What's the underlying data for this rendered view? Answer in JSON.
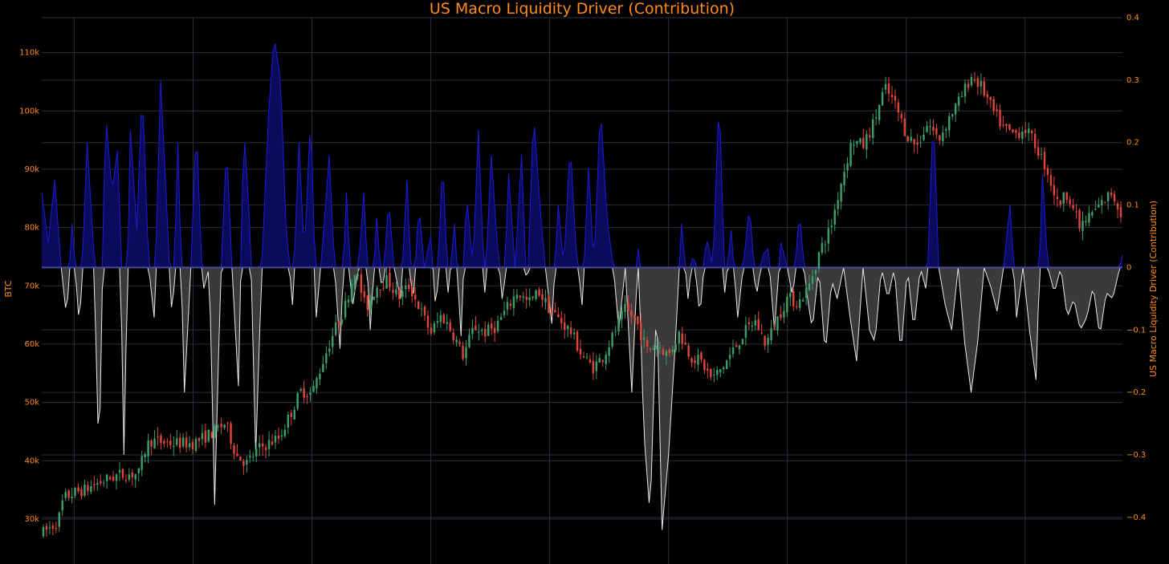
{
  "chart_data": {
    "type": "candlestick+area",
    "title": "US Macro Liquidity Driver (Contribution)",
    "y_left": {
      "label": "BTC",
      "range": [
        26000,
        116000
      ],
      "ticks": [
        30000,
        40000,
        50000,
        60000,
        70000,
        80000,
        90000,
        100000,
        110000
      ],
      "tick_labels": [
        "30k",
        "40k",
        "50k",
        "60k",
        "70k",
        "80k",
        "90k",
        "100k",
        "110k"
      ]
    },
    "y_right": {
      "label": "US Macro Liquidity Driver (Contribution)",
      "range": [
        -0.44,
        0.4
      ],
      "ticks": [
        -0.4,
        -0.3,
        -0.2,
        -0.1,
        0,
        0.1,
        0.2,
        0.3,
        0.4
      ],
      "tick_labels": [
        "−0.4",
        "−0.3",
        "−0.2",
        "−0.1",
        "0",
        "0.1",
        "0.2",
        "0.3",
        "0.4"
      ]
    },
    "x": {
      "range": [
        0,
        100
      ],
      "grid_positions": [
        3,
        14,
        25,
        36,
        47,
        58,
        69,
        80,
        91
      ],
      "tick_labels": []
    },
    "grid": true,
    "colors": {
      "background": "#000000",
      "grid": "#2b2f3e",
      "up": "#3d9e6a",
      "down": "#e0453a",
      "positive_fill": "#0b0b5e",
      "positive_line": "#1c1cd6",
      "negative_fill": "#3a3a3a",
      "negative_line": "#e8e8e8",
      "text": "#ff8c1a"
    },
    "btc_anchors": [
      [
        0,
        27500
      ],
      [
        1.5,
        29500
      ],
      [
        2,
        33500
      ],
      [
        3,
        34500
      ],
      [
        4,
        35000
      ],
      [
        5,
        36000
      ],
      [
        7,
        37500
      ],
      [
        9,
        37800
      ],
      [
        9.5,
        41500
      ],
      [
        10,
        43500
      ],
      [
        12,
        43000
      ],
      [
        14,
        43000
      ],
      [
        16,
        45000
      ],
      [
        17,
        46500
      ],
      [
        18,
        41000
      ],
      [
        19,
        39500
      ],
      [
        20,
        42000
      ],
      [
        22,
        44000
      ],
      [
        23,
        48000
      ],
      [
        24,
        52000
      ],
      [
        25,
        51500
      ],
      [
        26,
        57000
      ],
      [
        27,
        62000
      ],
      [
        28,
        66000
      ],
      [
        29,
        73000
      ],
      [
        30,
        66000
      ],
      [
        31,
        70000
      ],
      [
        32,
        71000
      ],
      [
        33,
        68000
      ],
      [
        34,
        70000
      ],
      [
        35,
        66000
      ],
      [
        36,
        62000
      ],
      [
        37,
        65000
      ],
      [
        38,
        62000
      ],
      [
        39,
        58000
      ],
      [
        40,
        63000
      ],
      [
        41,
        62000
      ],
      [
        42,
        63000
      ],
      [
        43,
        66000
      ],
      [
        44,
        69000
      ],
      [
        45,
        67000
      ],
      [
        46,
        69000
      ],
      [
        47,
        66000
      ],
      [
        48,
        64000
      ],
      [
        49,
        62000
      ],
      [
        50,
        58000
      ],
      [
        51,
        56000
      ],
      [
        52,
        58000
      ],
      [
        53,
        62000
      ],
      [
        54,
        66000
      ],
      [
        55,
        64000
      ],
      [
        56,
        59000
      ],
      [
        57,
        60000
      ],
      [
        58,
        58000
      ],
      [
        59,
        62000
      ],
      [
        60,
        58000
      ],
      [
        61,
        57000
      ],
      [
        62,
        54000
      ],
      [
        63,
        56000
      ],
      [
        64,
        59000
      ],
      [
        65,
        62000
      ],
      [
        66,
        64000
      ],
      [
        67,
        60000
      ],
      [
        68,
        64000
      ],
      [
        69,
        68000
      ],
      [
        70,
        67000
      ],
      [
        71,
        70000
      ],
      [
        72,
        76000
      ],
      [
        73,
        80000
      ],
      [
        74,
        88000
      ],
      [
        75,
        95000
      ],
      [
        76,
        94000
      ],
      [
        77,
        98000
      ],
      [
        78,
        104000
      ],
      [
        79,
        101000
      ],
      [
        80,
        96000
      ],
      [
        81,
        94000
      ],
      [
        82,
        98000
      ],
      [
        83,
        95000
      ],
      [
        84,
        99000
      ],
      [
        85,
        102000
      ],
      [
        86,
        106000
      ],
      [
        87,
        104000
      ],
      [
        88,
        100000
      ],
      [
        89,
        97000
      ],
      [
        90,
        96000
      ],
      [
        91,
        97000
      ],
      [
        92,
        94000
      ],
      [
        93,
        90000
      ],
      [
        94,
        84000
      ],
      [
        95,
        86000
      ],
      [
        96,
        80000
      ],
      [
        97,
        82000
      ],
      [
        98,
        84000
      ],
      [
        99,
        86000
      ],
      [
        100,
        82000
      ]
    ],
    "liquidity_anchors": [
      [
        0,
        0.12
      ],
      [
        0.6,
        0.04
      ],
      [
        1.2,
        0.14
      ],
      [
        1.8,
        0.0
      ],
      [
        2.3,
        -0.08
      ],
      [
        2.8,
        0.07
      ],
      [
        3.5,
        -0.1
      ],
      [
        4.2,
        0.2
      ],
      [
        4.8,
        0.03
      ],
      [
        5.3,
        -0.32
      ],
      [
        5.9,
        0.25
      ],
      [
        6.5,
        0.12
      ],
      [
        7.1,
        0.2
      ],
      [
        7.6,
        -0.3
      ],
      [
        8.2,
        0.22
      ],
      [
        8.8,
        0.06
      ],
      [
        9.3,
        0.29
      ],
      [
        9.9,
        0.0
      ],
      [
        10.4,
        -0.08
      ],
      [
        11.0,
        0.3
      ],
      [
        11.5,
        0.12
      ],
      [
        12.1,
        -0.1
      ],
      [
        12.6,
        0.2
      ],
      [
        13.2,
        -0.2
      ],
      [
        13.8,
        0.0
      ],
      [
        14.3,
        0.23
      ],
      [
        14.9,
        -0.04
      ],
      [
        15.5,
        0.0
      ],
      [
        16.0,
        -0.38
      ],
      [
        16.5,
        -0.05
      ],
      [
        17.1,
        0.2
      ],
      [
        17.6,
        0.0
      ],
      [
        18.2,
        -0.19
      ],
      [
        18.7,
        0.23
      ],
      [
        19.3,
        0.05
      ],
      [
        19.8,
        -0.3
      ],
      [
        20.4,
        0.02
      ],
      [
        21.0,
        0.25
      ],
      [
        21.5,
        0.37
      ],
      [
        22.1,
        0.3
      ],
      [
        22.6,
        0.07
      ],
      [
        23.2,
        -0.06
      ],
      [
        23.8,
        0.2
      ],
      [
        24.3,
        0.02
      ],
      [
        24.9,
        0.25
      ],
      [
        25.4,
        -0.08
      ],
      [
        26.0,
        0.04
      ],
      [
        26.6,
        0.18
      ],
      [
        27.1,
        0.0
      ],
      [
        27.6,
        -0.13
      ],
      [
        28.2,
        0.12
      ],
      [
        28.7,
        -0.07
      ],
      [
        29.3,
        0.0
      ],
      [
        29.8,
        0.12
      ],
      [
        30.4,
        -0.1
      ],
      [
        31.0,
        0.08
      ],
      [
        31.5,
        -0.05
      ],
      [
        32.1,
        0.11
      ],
      [
        32.6,
        0.0
      ],
      [
        33.2,
        -0.05
      ],
      [
        33.8,
        0.14
      ],
      [
        34.3,
        -0.07
      ],
      [
        34.9,
        0.1
      ],
      [
        35.4,
        0.0
      ],
      [
        36.0,
        0.05
      ],
      [
        36.5,
        -0.08
      ],
      [
        37.1,
        0.18
      ],
      [
        37.6,
        -0.04
      ],
      [
        38.2,
        0.07
      ],
      [
        38.8,
        -0.11
      ],
      [
        39.3,
        0.12
      ],
      [
        39.9,
        0.0
      ],
      [
        40.4,
        0.22
      ],
      [
        41.0,
        -0.04
      ],
      [
        41.6,
        0.18
      ],
      [
        42.1,
        0.05
      ],
      [
        42.7,
        -0.07
      ],
      [
        43.2,
        0.15
      ],
      [
        43.8,
        0.0
      ],
      [
        44.4,
        0.18
      ],
      [
        44.9,
        -0.06
      ],
      [
        45.5,
        0.25
      ],
      [
        46.1,
        0.1
      ],
      [
        46.6,
        0.0
      ],
      [
        47.2,
        -0.09
      ],
      [
        47.8,
        0.1
      ],
      [
        48.3,
        0.0
      ],
      [
        48.9,
        0.2
      ],
      [
        49.4,
        0.04
      ],
      [
        50.0,
        -0.06
      ],
      [
        50.6,
        0.16
      ],
      [
        51.1,
        0.0
      ],
      [
        51.7,
        0.26
      ],
      [
        52.3,
        0.08
      ],
      [
        52.9,
        0.0
      ],
      [
        53.4,
        -0.1
      ],
      [
        54.0,
        0.0
      ],
      [
        54.6,
        -0.2
      ],
      [
        55.2,
        0.03
      ],
      [
        55.7,
        -0.26
      ],
      [
        56.3,
        -0.4
      ],
      [
        56.9,
        -0.04
      ],
      [
        57.4,
        -0.42
      ],
      [
        58.0,
        -0.3
      ],
      [
        58.6,
        -0.13
      ],
      [
        59.2,
        0.07
      ],
      [
        59.8,
        -0.05
      ],
      [
        60.3,
        0.03
      ],
      [
        60.9,
        -0.08
      ],
      [
        61.5,
        0.05
      ],
      [
        62.1,
        0.0
      ],
      [
        62.7,
        0.28
      ],
      [
        63.2,
        -0.04
      ],
      [
        63.8,
        0.06
      ],
      [
        64.4,
        -0.08
      ],
      [
        64.9,
        0.0
      ],
      [
        65.5,
        0.1
      ],
      [
        66.1,
        -0.05
      ],
      [
        66.7,
        0.02
      ],
      [
        67.2,
        0.03
      ],
      [
        67.8,
        -0.1
      ],
      [
        68.4,
        0.04
      ],
      [
        69.0,
        0.0
      ],
      [
        69.5,
        -0.05
      ],
      [
        70.1,
        0.09
      ],
      [
        70.7,
        -0.03
      ],
      [
        71.3,
        -0.1
      ],
      [
        71.9,
        0.0
      ],
      [
        72.5,
        -0.14
      ],
      [
        73.1,
        -0.02
      ],
      [
        73.6,
        -0.05
      ],
      [
        74.2,
        0.0
      ],
      [
        74.8,
        -0.08
      ],
      [
        75.4,
        -0.15
      ],
      [
        76.0,
        0.0
      ],
      [
        76.6,
        -0.1
      ],
      [
        77.1,
        -0.12
      ],
      [
        77.7,
        0.0
      ],
      [
        78.3,
        -0.05
      ],
      [
        78.9,
        0.0
      ],
      [
        79.5,
        -0.14
      ],
      [
        80.1,
        0.0
      ],
      [
        80.7,
        -0.1
      ],
      [
        81.3,
        0.0
      ],
      [
        81.9,
        -0.04
      ],
      [
        82.5,
        0.25
      ],
      [
        83.0,
        0.0
      ],
      [
        83.6,
        -0.06
      ],
      [
        84.2,
        -0.1
      ],
      [
        84.8,
        0.0
      ],
      [
        85.4,
        -0.12
      ],
      [
        86.0,
        -0.2
      ],
      [
        86.6,
        -0.12
      ],
      [
        87.2,
        0.0
      ],
      [
        87.8,
        -0.03
      ],
      [
        88.4,
        -0.07
      ],
      [
        89.0,
        0.0
      ],
      [
        89.6,
        0.1
      ],
      [
        90.2,
        -0.08
      ],
      [
        90.8,
        0.0
      ],
      [
        91.4,
        -0.1
      ],
      [
        92.0,
        -0.18
      ],
      [
        92.6,
        0.15
      ],
      [
        93.1,
        0.0
      ],
      [
        93.7,
        -0.04
      ],
      [
        94.3,
        0.0
      ],
      [
        94.9,
        -0.08
      ],
      [
        95.5,
        -0.05
      ],
      [
        96.1,
        -0.1
      ],
      [
        96.7,
        -0.08
      ],
      [
        97.3,
        -0.03
      ],
      [
        97.9,
        -0.11
      ],
      [
        98.5,
        -0.04
      ],
      [
        99.1,
        -0.05
      ],
      [
        100,
        0.02
      ]
    ]
  }
}
